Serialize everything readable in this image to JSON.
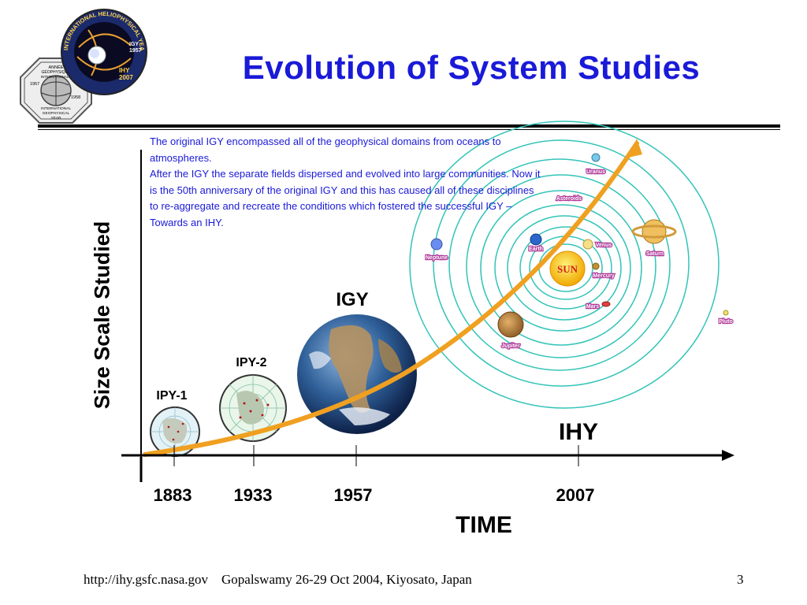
{
  "slide": {
    "title": "Evolution of System Studies",
    "intro_lines": [
      "The original IGY encompassed all of the geophysical domains from oceans to atmospheres.",
      "After the IGY the separate fields dispersed and evolved into large communities. Now it is the 50th anniversary of the original IGY and this has caused all of these disciplines to re-aggregate and recreate the conditions which fostered the successful IGY – Towards an IHY."
    ],
    "y_axis_label": "Size Scale Studied",
    "x_axis_label": "TIME",
    "years": [
      "1883",
      "1933",
      "1957",
      "2007"
    ],
    "eras": {
      "ipy1": "IPY-1",
      "ipy2": "IPY-2",
      "igy": "IGY",
      "ihy": "IHY"
    },
    "sun_label": "SUN",
    "planets": [
      "Uranus",
      "Asteroids",
      "Earth",
      "Venus",
      "Saturn",
      "Neptune",
      "Mercury",
      "Mars",
      "Jupiter",
      "Pluto"
    ],
    "logos": {
      "ihy_ring_text": "INTERNATIONAL HELIOPHYSICAL YEAR",
      "ihy_years": [
        "IGY",
        "1957",
        "IHY",
        "2007"
      ],
      "igy_text": [
        "ANNÉE",
        "GÉOPHYSIQUE",
        "INTERNATIONALE",
        "1957",
        "1958",
        "INTERNATIONAL",
        "GEOPHYSICAL",
        "YEAR"
      ]
    },
    "colors": {
      "title": "#1a1ad8",
      "intro": "#1a1ad8",
      "curve": "#f0a020",
      "orbit": "#33c4b8",
      "sun": "#f5c400"
    },
    "footer": {
      "url": "http://ihy.gsfc.nasa.gov",
      "credit": "Gopalswamy 26-29 Oct 2004, Kiyosato, Japan",
      "page_number": "3"
    }
  }
}
